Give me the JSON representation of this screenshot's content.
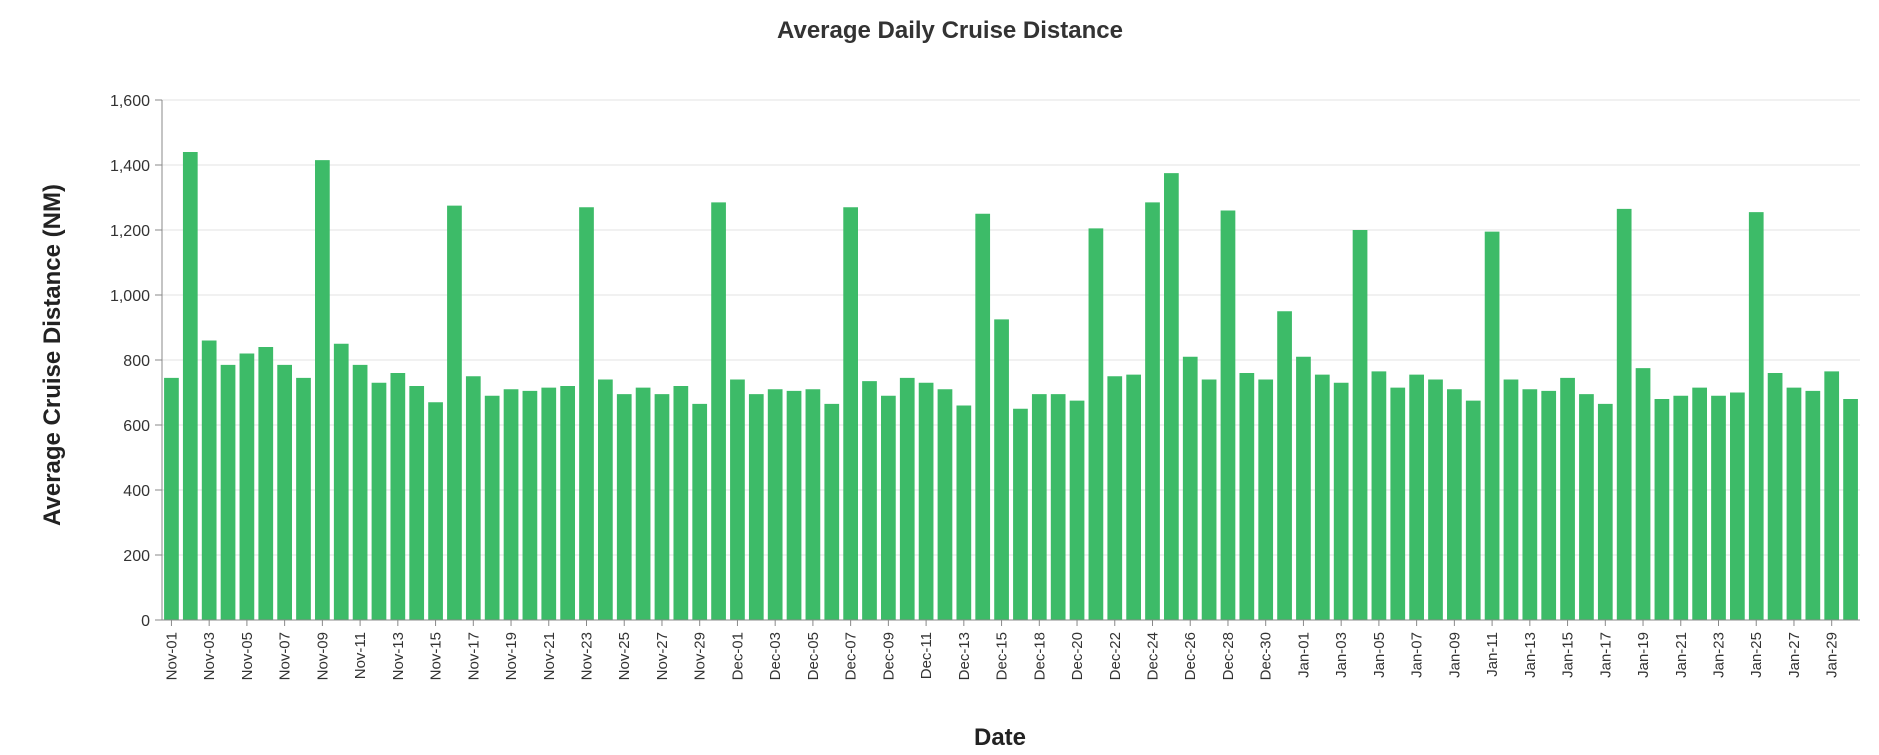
{
  "chart_data": {
    "type": "bar",
    "title": "Average Daily Cruise Distance",
    "xlabel": "Date",
    "ylabel": "Average Cruise Distance (NM)",
    "ylim": [
      0,
      1600
    ],
    "yticks": [
      "0",
      "200",
      "400",
      "600",
      "800",
      "1,000",
      "1,200",
      "1,400",
      "1,600"
    ],
    "ytick_values": [
      0,
      200,
      400,
      600,
      800,
      1000,
      1200,
      1400,
      1600
    ],
    "grid": "horizontal",
    "bar_color": "#3dbb68",
    "categories": [
      "Nov-01",
      "Nov-02",
      "Nov-03",
      "Nov-04",
      "Nov-05",
      "Nov-06",
      "Nov-07",
      "Nov-08",
      "Nov-09",
      "Nov-10",
      "Nov-11",
      "Nov-12",
      "Nov-13",
      "Nov-14",
      "Nov-15",
      "Nov-16",
      "Nov-17",
      "Nov-18",
      "Nov-19",
      "Nov-20",
      "Nov-21",
      "Nov-22",
      "Nov-23",
      "Nov-24",
      "Nov-25",
      "Nov-26",
      "Nov-27",
      "Nov-28",
      "Nov-29",
      "Nov-30",
      "Dec-01",
      "Dec-02",
      "Dec-03",
      "Dec-04",
      "Dec-05",
      "Dec-06",
      "Dec-07",
      "Dec-08",
      "Dec-09",
      "Dec-10",
      "Dec-11",
      "Dec-12",
      "Dec-13",
      "Dec-14",
      "Dec-15",
      "Dec-16",
      "Dec-18",
      "Dec-19",
      "Dec-20",
      "Dec-21",
      "Dec-22",
      "Dec-23",
      "Dec-24",
      "Dec-25",
      "Dec-26",
      "Dec-27",
      "Dec-28",
      "Dec-29",
      "Dec-30",
      "Dec-31",
      "Jan-01",
      "Jan-02",
      "Jan-03",
      "Jan-04",
      "Jan-05",
      "Jan-06",
      "Jan-07",
      "Jan-08",
      "Jan-09",
      "Jan-10",
      "Jan-11",
      "Jan-12",
      "Jan-13",
      "Jan-14",
      "Jan-15",
      "Jan-16",
      "Jan-17",
      "Jan-18",
      "Jan-19",
      "Jan-20",
      "Jan-21",
      "Jan-22",
      "Jan-23",
      "Jan-24",
      "Jan-25",
      "Jan-26",
      "Jan-27",
      "Jan-28",
      "Jan-29",
      "Jan-30"
    ],
    "values": [
      745,
      1440,
      860,
      785,
      820,
      840,
      785,
      745,
      1415,
      850,
      785,
      730,
      760,
      720,
      670,
      1275,
      750,
      690,
      710,
      705,
      715,
      720,
      1270,
      740,
      695,
      715,
      695,
      720,
      665,
      1285,
      740,
      695,
      710,
      705,
      710,
      665,
      1270,
      735,
      690,
      745,
      730,
      710,
      660,
      1250,
      925,
      650,
      695,
      695,
      675,
      1205,
      750,
      755,
      1285,
      1375,
      810,
      740,
      1260,
      760,
      740,
      950,
      810,
      755,
      730,
      1200,
      765,
      715,
      755,
      740,
      710,
      675,
      1195,
      740,
      710,
      705,
      745,
      695,
      665,
      1265,
      775,
      680,
      690,
      715,
      690,
      700,
      1255,
      760,
      715,
      705,
      765,
      680
    ],
    "tick_indices": [
      0,
      2,
      4,
      6,
      8,
      10,
      12,
      14,
      16,
      18,
      20,
      22,
      24,
      26,
      28,
      30,
      32,
      34,
      36,
      38,
      40,
      42,
      44,
      46,
      48,
      50,
      52,
      54,
      56,
      58,
      60,
      62,
      64,
      66,
      68,
      70,
      72,
      74,
      76,
      78,
      80,
      82,
      84,
      86,
      88
    ],
    "tick_labels": [
      "Nov-01",
      "Nov-03",
      "Nov-05",
      "Nov-07",
      "Nov-09",
      "Nov-11",
      "Nov-13",
      "Nov-15",
      "Nov-17",
      "Nov-19",
      "Nov-21",
      "Nov-23",
      "Nov-25",
      "Nov-27",
      "Nov-29",
      "Dec-01",
      "Dec-03",
      "Dec-05",
      "Dec-07",
      "Dec-09",
      "Dec-11",
      "Dec-13",
      "Dec-15",
      "Dec-18",
      "Dec-20",
      "Dec-22",
      "Dec-24",
      "Dec-26",
      "Dec-28",
      "Dec-30",
      "Jan-01",
      "Jan-03",
      "Jan-05",
      "Jan-07",
      "Jan-09",
      "Jan-11",
      "Jan-13",
      "Jan-15",
      "Jan-17",
      "Jan-19",
      "Jan-21",
      "Jan-23",
      "Jan-25",
      "Jan-27",
      "Jan-29"
    ]
  }
}
